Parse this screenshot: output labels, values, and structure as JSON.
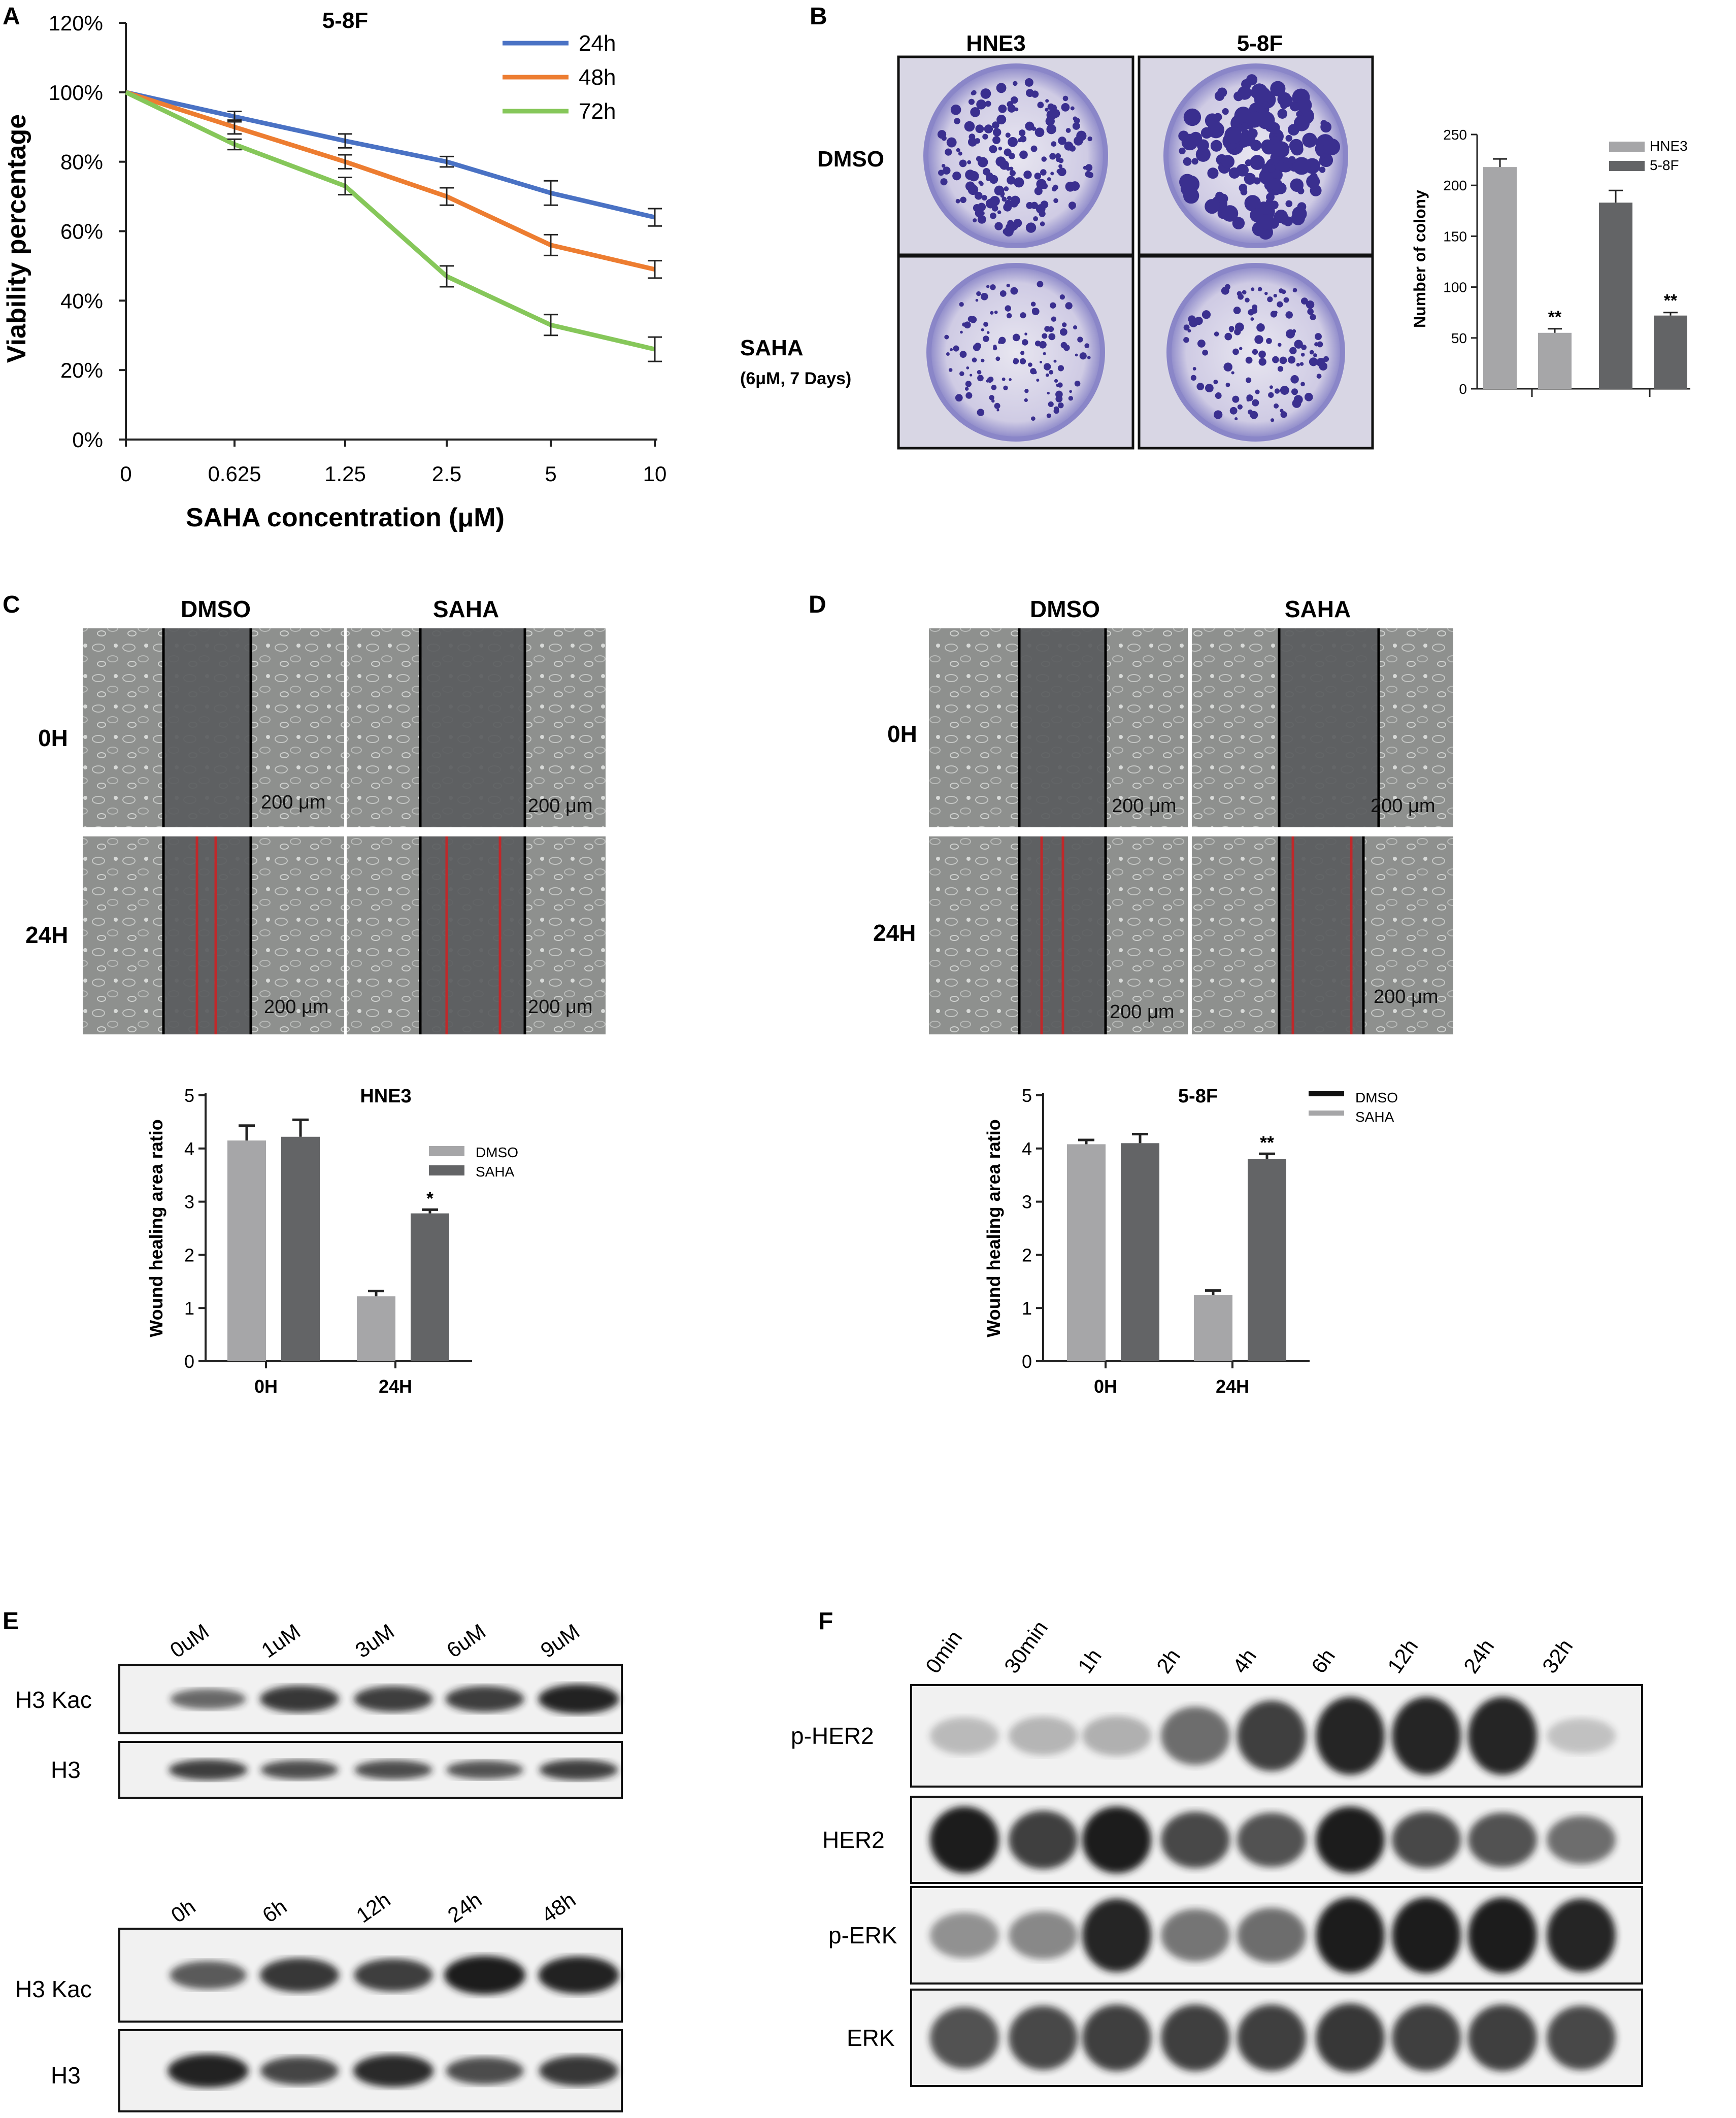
{
  "colors": {
    "h24": "#4a72c4",
    "h48": "#ed7d31",
    "h72": "#86c75a",
    "bar_light": "#a6a6a8",
    "bar_dark": "#636466",
    "well": "#8a86c8",
    "colony": "#3a2f8f",
    "micro_bg": "#8a8c8a",
    "micro_gap": "#5a5c5e",
    "blot_bg": "#f1f1f1",
    "band": "#1c1c1c",
    "scratch_red": "#c0282a"
  },
  "panels": {
    "A": "A",
    "B": "B",
    "C": "C",
    "D": "D",
    "E": "E",
    "F": "F"
  },
  "chart_data": [
    {
      "id": "A",
      "type": "line",
      "title": "5-8F",
      "xlabel": "SAHA concentration (μM)",
      "ylabel": "Viability percentage",
      "categories": [
        "0",
        "0.625",
        "1.25",
        "2.5",
        "5",
        "10"
      ],
      "yticks": [
        "0%",
        "20%",
        "40%",
        "60%",
        "80%",
        "100%",
        "120%"
      ],
      "ylim": [
        0,
        120
      ],
      "series": [
        {
          "name": "24h",
          "values": [
            100,
            93,
            86,
            80,
            71,
            64
          ],
          "errors": [
            0,
            1.5,
            2,
            1.5,
            3.5,
            2.5
          ],
          "color": "#4a72c4"
        },
        {
          "name": "48h",
          "values": [
            100,
            90,
            80,
            70,
            56,
            49
          ],
          "errors": [
            0,
            2,
            2,
            2.5,
            3,
            2.5
          ],
          "color": "#ed7d31"
        },
        {
          "name": "72h",
          "values": [
            100,
            85,
            73,
            47,
            33,
            26
          ],
          "errors": [
            0,
            1.5,
            2.5,
            3,
            3,
            3.5
          ],
          "color": "#86c75a"
        }
      ],
      "legend": "top-right"
    },
    {
      "id": "B",
      "type": "bar",
      "ylabel": "Number of colony",
      "yticks": [
        "0",
        "50",
        "100",
        "150",
        "200",
        "250"
      ],
      "ylim": [
        0,
        250
      ],
      "legend_entries": [
        "HNE3",
        "5-8F"
      ],
      "bars": [
        {
          "value": 218,
          "error": 8,
          "color": "light",
          "sig": ""
        },
        {
          "value": 55,
          "error": 4,
          "color": "light",
          "sig": "**"
        },
        {
          "value": 183,
          "error": 12,
          "color": "dark",
          "sig": ""
        },
        {
          "value": 72,
          "error": 3,
          "color": "dark",
          "sig": "**"
        }
      ]
    },
    {
      "id": "C",
      "type": "bar",
      "title": "HNE3",
      "ylabel": "Wound healing area ratio",
      "categories": [
        "0H",
        "24H"
      ],
      "yticks": [
        "0",
        "1",
        "2",
        "3",
        "4",
        "5"
      ],
      "ylim": [
        0,
        5
      ],
      "series": [
        {
          "name": "DMSO",
          "values": [
            4.15,
            1.22
          ],
          "errors": [
            0.28,
            0.1
          ]
        },
        {
          "name": "SAHA",
          "values": [
            4.22,
            2.78
          ],
          "errors": [
            0.32,
            0.07
          ]
        }
      ],
      "sig": [
        "",
        "*"
      ]
    },
    {
      "id": "D",
      "type": "bar",
      "title": "5-8F",
      "ylabel": "Wound healing area ratio",
      "categories": [
        "0H",
        "24H"
      ],
      "yticks": [
        "0",
        "1",
        "2",
        "3",
        "4",
        "5"
      ],
      "ylim": [
        0,
        5
      ],
      "series": [
        {
          "name": "DMSO",
          "values": [
            4.08,
            1.25
          ],
          "errors": [
            0.08,
            0.08
          ]
        },
        {
          "name": "SAHA",
          "values": [
            4.1,
            3.8
          ],
          "errors": [
            0.17,
            0.1
          ]
        }
      ],
      "sig": [
        "",
        "**"
      ]
    }
  ],
  "panelB_images": {
    "cols": [
      "HNE3",
      "5-8F"
    ],
    "rows": [
      "DMSO",
      "SAHA"
    ],
    "row2_sub": "(6μM, 7 Days)"
  },
  "panelC_images": {
    "cols": [
      "DMSO",
      "SAHA"
    ],
    "rows": [
      "0H",
      "24H"
    ],
    "scale": "200 μm"
  },
  "panelD_images": {
    "cols": [
      "DMSO",
      "SAHA"
    ],
    "rows": [
      "0H",
      "24H"
    ],
    "scale": "200 μm"
  },
  "blotE": {
    "top_lanes": [
      "0uM",
      "1uM",
      "3uM",
      "6uM",
      "9uM"
    ],
    "bottom_lanes": [
      "0h",
      "6h",
      "12h",
      "24h",
      "48h"
    ],
    "rows": [
      "H3 Kac",
      "H3"
    ],
    "top_kac": [
      0.45,
      0.8,
      0.75,
      0.75,
      0.95
    ],
    "top_h3": [
      0.75,
      0.65,
      0.65,
      0.6,
      0.75
    ],
    "bot_kac": [
      0.55,
      0.8,
      0.75,
      1.0,
      0.95
    ],
    "bot_h3": [
      0.95,
      0.7,
      0.9,
      0.65,
      0.8
    ]
  },
  "blotF": {
    "lanes": [
      "0min",
      "30min",
      "1h",
      "2h",
      "4h",
      "6h",
      "12h",
      "24h",
      "32h"
    ],
    "rows": [
      "p-HER2",
      "HER2",
      "p-ERK",
      "ERK"
    ],
    "intensity": {
      "p-HER2": [
        0.12,
        0.15,
        0.18,
        0.55,
        0.8,
        0.95,
        0.95,
        0.95,
        0.08
      ],
      "HER2": [
        1.0,
        0.8,
        1.0,
        0.75,
        0.7,
        1.0,
        0.75,
        0.7,
        0.55
      ],
      "p-ERK": [
        0.35,
        0.4,
        0.95,
        0.5,
        0.55,
        1.0,
        1.0,
        1.0,
        0.95
      ],
      "ERK": [
        0.7,
        0.75,
        0.8,
        0.8,
        0.8,
        0.85,
        0.8,
        0.8,
        0.75
      ]
    }
  }
}
